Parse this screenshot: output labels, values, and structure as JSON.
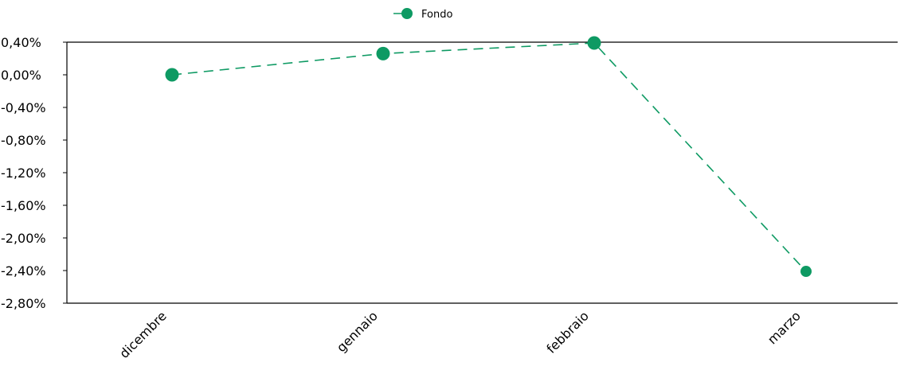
{
  "chart_data": {
    "type": "line",
    "categories": [
      "dicembre",
      "gennaio",
      "febbraio",
      "marzo"
    ],
    "series": [
      {
        "name": "Fondo",
        "values": [
          0.0,
          0.26,
          0.39,
          -2.41
        ],
        "color": "#0e9a63",
        "line_style": "dashed",
        "marker": "circle"
      }
    ],
    "ylim": [
      -2.8,
      0.4
    ],
    "yticks": [
      0.4,
      0.0,
      -0.4,
      -0.8,
      -1.2,
      -1.6,
      -2.0,
      -2.4,
      -2.8
    ],
    "ytick_labels": [
      "0,40%",
      "0,00%",
      "-0,40%",
      "-0,80%",
      "-1,20%",
      "-1,60%",
      "-2,00%",
      "-2,40%",
      "-2,80%"
    ],
    "legend": {
      "position": "top-center"
    },
    "grid": false
  }
}
